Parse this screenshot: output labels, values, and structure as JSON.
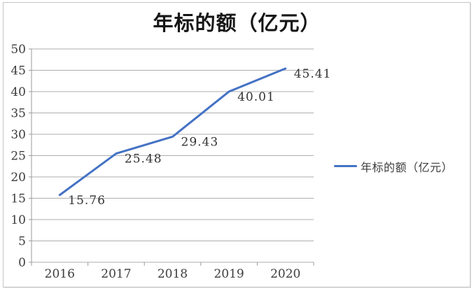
{
  "window": {
    "background": "#ffffff",
    "frame_border_color": "#c6c6c6"
  },
  "chart_data": {
    "type": "line",
    "title": "年标的额（亿元）",
    "categories": [
      "2016",
      "2017",
      "2018",
      "2019",
      "2020"
    ],
    "series": [
      {
        "name": "年标的额（亿元）",
        "values": [
          15.76,
          25.48,
          29.43,
          40.01,
          45.41
        ],
        "color": "#4472C4"
      }
    ],
    "data_labels": [
      "15.76",
      "25.48",
      "29.43",
      "40.01",
      "45.41"
    ],
    "y_ticks": [
      0,
      5,
      10,
      15,
      20,
      25,
      30,
      35,
      40,
      45,
      50
    ],
    "ylim": [
      0,
      50
    ],
    "xlabel": "",
    "ylabel": "",
    "grid": true,
    "grid_color": "#aeaeae",
    "axis_color": "#9b9b9b",
    "text_color": "#3d3d3d",
    "legend_position": "right",
    "legend_label": "年标的额（亿元）"
  }
}
